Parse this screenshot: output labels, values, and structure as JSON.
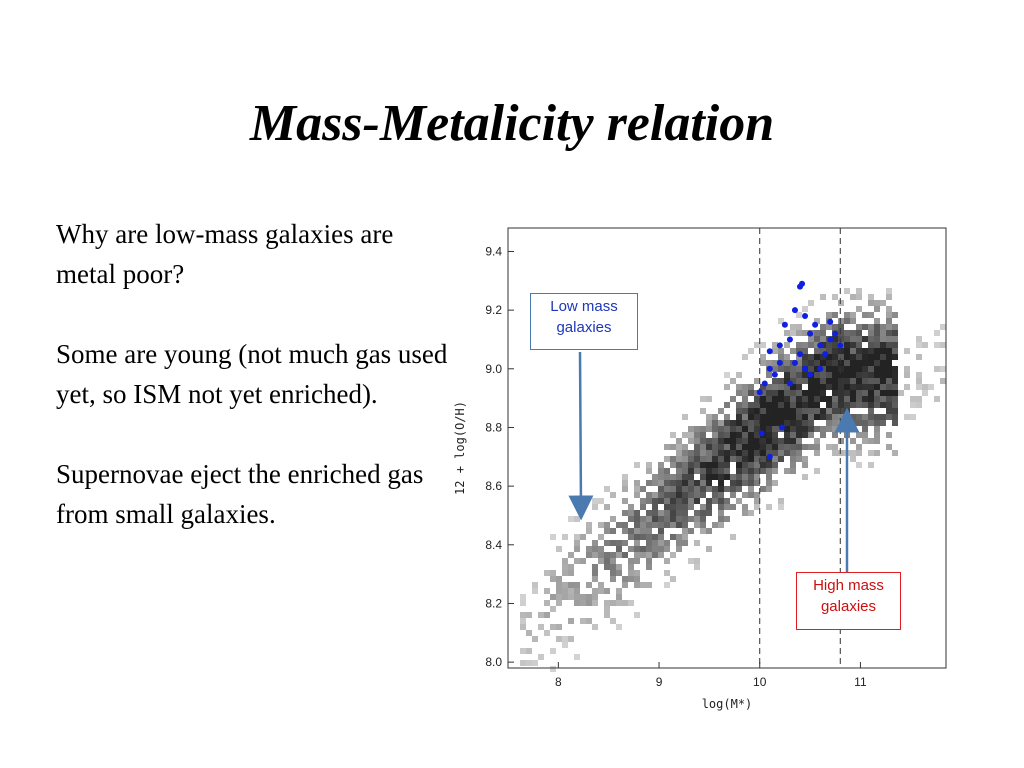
{
  "title": "Mass-Metalicity relation",
  "body_paragraphs": [
    "Why are low-mass galaxies are metal poor?",
    "Some are young (not much gas used yet, so ISM not yet enriched).",
    "Supernovae eject the enriched gas from small galaxies."
  ],
  "callouts": {
    "low": "Low mass galaxies",
    "high": "High mass galaxies"
  },
  "chart_data": {
    "type": "heatmap",
    "xlabel": "log(M*)",
    "ylabel": "12 + log(O/H)",
    "xlim": [
      7.5,
      11.85
    ],
    "ylim": [
      7.98,
      9.48
    ],
    "x_ticks": [
      8,
      9,
      10,
      11
    ],
    "y_ticks": [
      8.0,
      8.2,
      8.4,
      8.6,
      8.8,
      9.0,
      9.2,
      9.4
    ],
    "vlines": [
      10.0,
      10.8
    ],
    "density_note": "grayscale 2D histogram rising from lower-left to upper-right",
    "colors": {
      "overlay_points": "#1020e0",
      "low_callout": "#1f37b8",
      "high_callout": "#cc1010",
      "arrow": "#4a7ab0"
    },
    "series": [
      {
        "type": "scatter",
        "points": [
          [
            10.2,
            9.02
          ],
          [
            10.3,
            9.1
          ],
          [
            10.4,
            9.05
          ],
          [
            10.5,
            9.12
          ],
          [
            10.6,
            9.08
          ],
          [
            10.05,
            8.95
          ],
          [
            10.1,
            9.0
          ],
          [
            10.25,
            9.15
          ],
          [
            10.35,
            9.2
          ],
          [
            10.45,
            9.18
          ],
          [
            10.55,
            9.15
          ],
          [
            10.65,
            9.05
          ],
          [
            10.7,
            9.1
          ],
          [
            10.15,
            8.98
          ],
          [
            10.3,
            8.95
          ],
          [
            10.4,
            9.28
          ],
          [
            10.42,
            9.29
          ],
          [
            10.0,
            8.92
          ],
          [
            10.02,
            8.78
          ],
          [
            10.1,
            8.7
          ],
          [
            10.22,
            8.8
          ],
          [
            10.5,
            8.98
          ],
          [
            10.6,
            9.0
          ],
          [
            10.7,
            9.16
          ],
          [
            10.75,
            9.12
          ],
          [
            10.8,
            9.08
          ],
          [
            10.2,
            9.08
          ],
          [
            10.1,
            9.06
          ],
          [
            10.35,
            9.02
          ],
          [
            10.45,
            9.0
          ]
        ]
      }
    ]
  }
}
